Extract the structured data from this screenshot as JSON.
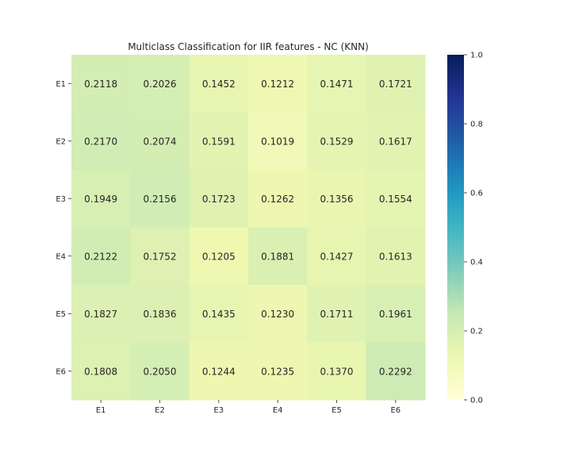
{
  "chart_data": {
    "type": "heatmap",
    "title": "Multiclass Classification for IIR features - NC (KNN)",
    "x_categories": [
      "E1",
      "E2",
      "E3",
      "E4",
      "E5",
      "E6"
    ],
    "y_categories": [
      "E1",
      "E2",
      "E3",
      "E4",
      "E5",
      "E6"
    ],
    "values": [
      [
        0.2118,
        0.2026,
        0.1452,
        0.1212,
        0.1471,
        0.1721
      ],
      [
        0.217,
        0.2074,
        0.1591,
        0.1019,
        0.1529,
        0.1617
      ],
      [
        0.1949,
        0.2156,
        0.1723,
        0.1262,
        0.1356,
        0.1554
      ],
      [
        0.2122,
        0.1752,
        0.1205,
        0.1881,
        0.1427,
        0.1613
      ],
      [
        0.1827,
        0.1836,
        0.1435,
        0.123,
        0.1711,
        0.1961
      ],
      [
        0.1808,
        0.205,
        0.1244,
        0.1235,
        0.137,
        0.2292
      ]
    ],
    "value_range": [
      0.0,
      1.0
    ],
    "colormap": "YlGnBu",
    "colorbar_ticks": [
      "0.0",
      "0.2",
      "0.4",
      "0.6",
      "0.8",
      "1.0"
    ],
    "annotation_color": "#262626"
  }
}
